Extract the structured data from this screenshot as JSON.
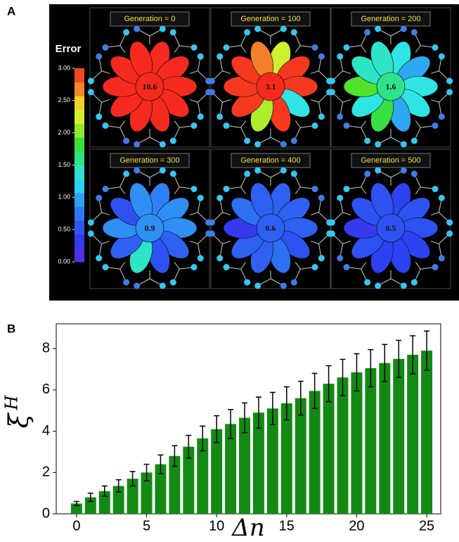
{
  "figure_labels": [
    "A",
    "B"
  ],
  "panel_a": {
    "colorbar_title": "Error",
    "colorbar_lim": [
      0,
      3
    ],
    "colorbar_ticks": [
      {
        "value": 0,
        "label": "0.00"
      },
      {
        "value": 0.5,
        "label": "0.50"
      },
      {
        "value": 1,
        "label": "1.00"
      },
      {
        "value": 1.5,
        "label": "1.50"
      },
      {
        "value": 2,
        "label": "2.00"
      },
      {
        "value": 2.5,
        "label": "2.50"
      },
      {
        "value": 3,
        "label": "3.00"
      }
    ],
    "panels": [
      {
        "title": "Generation = 0",
        "center_label": "10.6",
        "center": 10.6,
        "petals": [
          3,
          3,
          3,
          3,
          3,
          3,
          3,
          3,
          3,
          3
        ]
      },
      {
        "title": "Generation = 100",
        "center_label": "3.1",
        "center": 3.1,
        "petals": [
          2.2,
          2.95,
          2.95,
          1.3,
          2.95,
          2.1,
          2.95,
          2.95,
          2.95,
          2.7
        ]
      },
      {
        "title": "Generation = 200",
        "center_label": "1.6",
        "center": 1.6,
        "petals": [
          1.3,
          1.0,
          1.3,
          1.3,
          1.0,
          1.8,
          1.3,
          1.9,
          1.4,
          1.4
        ]
      },
      {
        "title": "Generation = 300",
        "center_label": "0.9",
        "center": 0.9,
        "petals": [
          0.8,
          0.9,
          0.9,
          0.6,
          0.5,
          1.4,
          0.6,
          0.9,
          0.5,
          0.9
        ]
      },
      {
        "title": "Generation = 400",
        "center_label": "0.6",
        "center": 0.6,
        "petals": [
          0.6,
          0.6,
          0.6,
          0.5,
          0.7,
          0.6,
          0.6,
          0.3,
          0.7,
          0.6
        ]
      },
      {
        "title": "Generation = 500",
        "center_label": "0.5",
        "center": 0.5,
        "petals": [
          0.4,
          0.5,
          0.5,
          0.4,
          0.4,
          0.4,
          0.5,
          0.3,
          0.5,
          0.5
        ]
      }
    ]
  },
  "chart_data": {
    "type": "bar",
    "xlabel": "Δn",
    "ylabel": "ξ",
    "ylabel_sup": "H",
    "x": [
      0,
      1,
      2,
      3,
      4,
      5,
      6,
      7,
      8,
      9,
      10,
      11,
      12,
      13,
      14,
      15,
      16,
      17,
      18,
      19,
      20,
      21,
      22,
      23,
      24,
      25
    ],
    "values": [
      0.5,
      0.8,
      1.1,
      1.35,
      1.7,
      2.0,
      2.4,
      2.8,
      3.25,
      3.65,
      4.1,
      4.35,
      4.65,
      4.9,
      5.1,
      5.35,
      5.6,
      5.95,
      6.3,
      6.6,
      6.85,
      7.05,
      7.3,
      7.5,
      7.7,
      7.9
    ],
    "errors": [
      0.1,
      0.2,
      0.25,
      0.3,
      0.35,
      0.4,
      0.45,
      0.5,
      0.55,
      0.6,
      0.65,
      0.7,
      0.72,
      0.75,
      0.78,
      0.8,
      0.82,
      0.85,
      0.87,
      0.88,
      0.9,
      0.9,
      0.9,
      0.9,
      0.92,
      0.95
    ],
    "color": "#138a13",
    "xlim": [
      -1.45,
      26
    ],
    "xticks": [
      0,
      5,
      10,
      15,
      20,
      25
    ],
    "ylim": [
      0,
      9.2
    ],
    "yticks": [
      0,
      2,
      4,
      6,
      8
    ]
  }
}
